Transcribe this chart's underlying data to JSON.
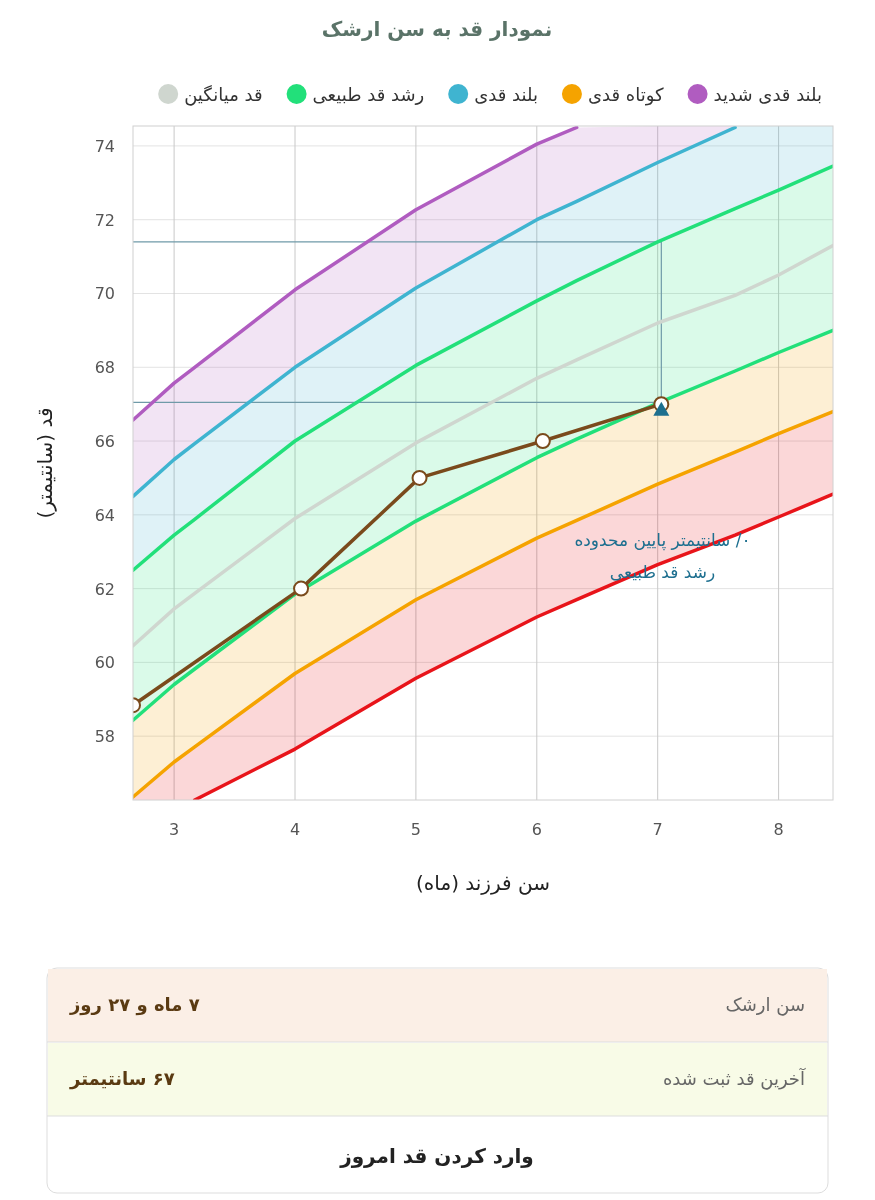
{
  "chart_data": [
    {
      "type": "line",
      "title": "نمودار قد به سن ارشک",
      "xlabel": "سن فرزند (ماه)",
      "ylabel": "قد (سانتیمتر)",
      "legend": "top",
      "grid": true,
      "marker": "none",
      "xlim": [
        2.66,
        8.45
      ],
      "ylim": [
        56.27,
        74.54
      ],
      "xticks": [
        3,
        4,
        5,
        6,
        7,
        8
      ],
      "yticks": [
        58,
        60,
        62,
        64,
        66,
        68,
        70,
        72,
        74
      ],
      "x": [
        2.66,
        3,
        3.17,
        4,
        5,
        6,
        6.33,
        7,
        7.64,
        8,
        8.45
      ],
      "series": [
        {
          "name": "بلند قدی شدید",
          "color": "#b05cc0",
          "values": [
            66.57,
            67.57,
            68.0,
            70.1,
            72.27,
            74.05,
            74.5,
            null,
            null,
            null,
            null
          ],
          "upper": [
            66.57,
            67.57,
            68.0,
            70.1,
            72.27,
            74.05,
            74.5,
            74.54,
            74.54,
            null,
            null
          ],
          "lower": [
            64.5,
            65.5,
            65.93,
            68.0,
            70.15,
            72.0,
            72.5,
            73.55,
            74.54,
            null,
            null
          ]
        },
        {
          "name": "کوتاه قدی",
          "color": "#f5a300",
          "values": [
            56.35,
            57.3,
            57.71,
            59.7,
            61.7,
            63.37,
            63.85,
            64.83,
            65.7,
            66.2,
            66.8
          ],
          "upper": [
            58.43,
            59.4,
            59.82,
            61.85,
            63.83,
            65.55,
            66.05,
            67.03,
            67.9,
            68.4,
            69.0
          ],
          "lower": [
            56.35,
            57.3,
            57.71,
            59.7,
            61.7,
            63.37,
            63.85,
            64.83,
            65.7,
            66.2,
            66.8
          ]
        },
        {
          "name": "بلند قدی",
          "color": "#3fb4d0",
          "values": [
            64.5,
            65.5,
            65.93,
            68.0,
            70.15,
            72.0,
            72.5,
            73.55,
            74.5,
            null,
            null
          ],
          "upper": [
            64.5,
            65.5,
            65.93,
            68.0,
            70.15,
            72.0,
            72.5,
            73.55,
            74.54,
            74.54,
            74.54
          ],
          "lower": [
            62.5,
            63.45,
            63.88,
            66.0,
            68.05,
            69.8,
            70.35,
            71.4,
            72.3,
            72.8,
            73.45
          ]
        },
        {
          "name": "رشد قد طبیعی",
          "color": "#22e07a",
          "values": [
            62.5,
            63.45,
            63.88,
            66.0,
            68.05,
            69.8,
            70.35,
            71.4,
            72.3,
            72.8,
            73.45
          ],
          "upper": [
            62.5,
            63.45,
            63.88,
            66.0,
            68.05,
            69.8,
            70.35,
            71.4,
            72.3,
            72.8,
            73.45
          ],
          "lower": [
            58.43,
            59.4,
            59.82,
            61.85,
            63.83,
            65.55,
            66.05,
            67.03,
            67.9,
            68.4,
            69.0
          ]
        },
        {
          "name": "قد میانگین",
          "color": "#cfd6cf",
          "values": [
            60.45,
            61.45,
            61.87,
            63.9,
            65.95,
            67.7,
            68.2,
            69.2,
            69.95,
            70.5,
            71.3
          ]
        },
        {
          "color": "#22e07a",
          "values": [
            58.43,
            59.4,
            59.82,
            61.85,
            63.83,
            65.55,
            66.05,
            67.03,
            67.9,
            68.4,
            69.0
          ]
        },
        {
          "color": "#e8141a",
          "values": [
            null,
            null,
            56.27,
            57.65,
            59.57,
            61.23,
            61.7,
            62.65,
            63.45,
            63.94,
            64.56
          ],
          "upper": [
            56.35,
            57.3,
            57.71,
            59.7,
            61.7,
            63.37,
            63.85,
            64.83,
            65.7,
            66.2,
            66.8
          ],
          "lower": [
            56.27,
            56.27,
            56.27,
            57.65,
            59.57,
            61.23,
            61.7,
            62.65,
            63.45,
            63.94,
            64.56
          ]
        },
        {
          "color": "#7a4a1c",
          "marker": "circle",
          "x": [
            2.66,
            4.05,
            5.03,
            6.05,
            7.03
          ],
          "values": [
            58.84,
            62,
            65,
            66,
            67
          ]
        },
        {
          "type": "scatter",
          "color": "#1d6f8f",
          "marker": "triangle",
          "x": [
            7.03
          ],
          "values": [
            66.85
          ]
        }
      ],
      "ref_lines": [
        {
          "axis": "y",
          "value": 71.4,
          "color": "#6f9aa8"
        },
        {
          "axis": "y",
          "value": 67.05,
          "color": "#6f9aa8"
        },
        {
          "axis": "x",
          "value": 7.03,
          "color": "#6f9aa8"
        }
      ],
      "annotations": [
        "۰/ سانتیمتر پایین محدوده رشد قد طبیعی"
      ]
    },
    {
      "type": "other",
      "annotations": [
        "سن ارشک",
        "۷ ماه و ۲۷ روز",
        "آخرین قد ثبت شده",
        "۶۷ سانتیمتر",
        "وارد کردن قد امروز"
      ]
    }
  ]
}
